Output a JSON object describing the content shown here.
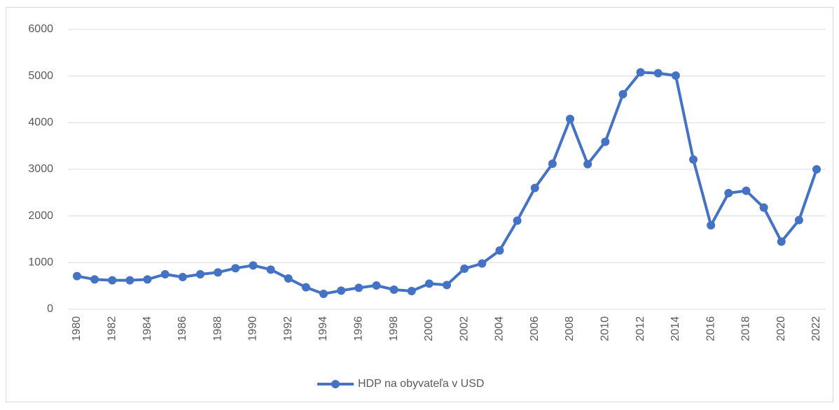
{
  "chart_data": {
    "type": "line",
    "categories": [
      "1980",
      null,
      "1982",
      null,
      "1984",
      null,
      "1986",
      null,
      "1988",
      null,
      "1990",
      null,
      "1992",
      null,
      "1994",
      null,
      "1996",
      null,
      "1998",
      null,
      "2000",
      null,
      "2002",
      null,
      "2004",
      null,
      "2006",
      null,
      "2008",
      null,
      "2010",
      null,
      "2012",
      null,
      "2014",
      null,
      "2016",
      null,
      "2018",
      null,
      "2020",
      null,
      "2022"
    ],
    "series": [
      {
        "name": "HDP na obyvateľa v USD",
        "color": "#4472c4",
        "values": [
          710,
          640,
          620,
          620,
          640,
          750,
          690,
          750,
          790,
          880,
          940,
          850,
          660,
          470,
          330,
          400,
          460,
          510,
          420,
          390,
          550,
          520,
          870,
          980,
          1260,
          1900,
          2600,
          3120,
          4080,
          3110,
          3590,
          4610,
          5080,
          5060,
          5010,
          3210,
          1800,
          2490,
          2540,
          2180,
          1450,
          1910,
          3000
        ]
      }
    ],
    "ylim": [
      0,
      6000
    ],
    "yticks": [
      0,
      1000,
      2000,
      3000,
      4000,
      5000,
      6000
    ],
    "grid": true,
    "legend": "bottom"
  }
}
